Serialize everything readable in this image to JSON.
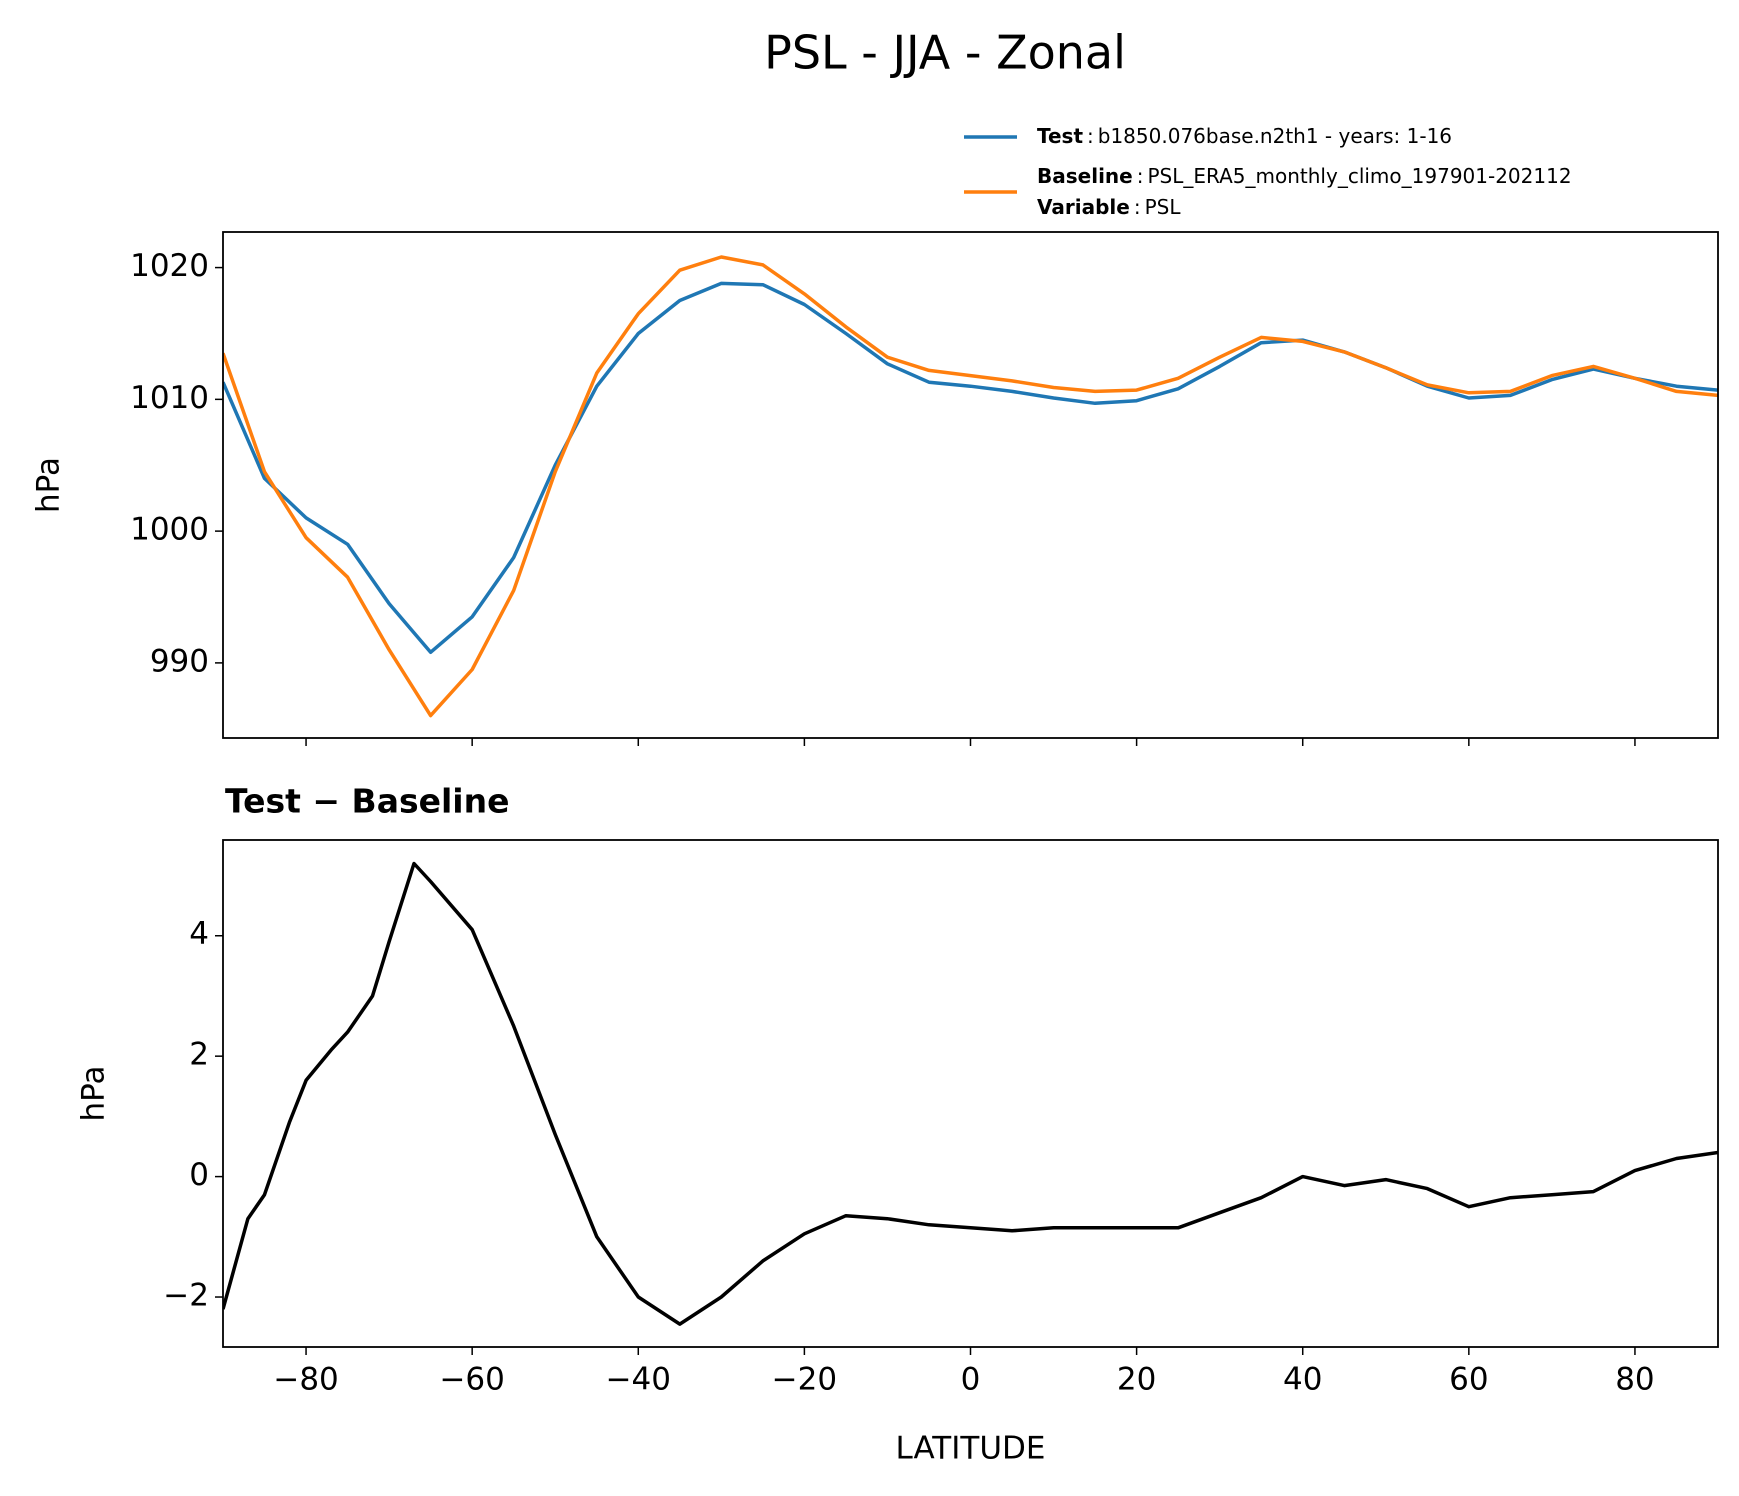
{
  "title": "PSL - JJA - Zonal",
  "legend": {
    "separator": ":",
    "extra": {
      "key": "Variable",
      "text": "PSL"
    }
  },
  "chart_data": [
    {
      "type": "line",
      "ylabel": "hPa",
      "x": [
        -90,
        -85,
        -80,
        -75,
        -70,
        -65,
        -60,
        -55,
        -50,
        -45,
        -40,
        -35,
        -30,
        -25,
        -20,
        -15,
        -10,
        -5,
        0,
        5,
        10,
        15,
        20,
        25,
        30,
        35,
        40,
        45,
        50,
        55,
        60,
        65,
        70,
        75,
        80,
        85,
        90
      ],
      "series": [
        {
          "name": "Test",
          "description": "b1850.076base.n2th1 - years: 1-16",
          "color": "#1f77b4",
          "values": [
            1011.3,
            1004,
            1001,
            999,
            994.5,
            990.8,
            993.5,
            998,
            1005,
            1011,
            1015,
            1017.5,
            1018.8,
            1018.7,
            1017.2,
            1015,
            1012.7,
            1011.3,
            1011,
            1010.6,
            1010.1,
            1009.7,
            1009.9,
            1010.8,
            1012.5,
            1014.3,
            1014.5,
            1013.6,
            1012.4,
            1011,
            1010.1,
            1010.3,
            1011.5,
            1012.3,
            1011.6,
            1011,
            1010.7
          ]
        },
        {
          "name": "Baseline",
          "description": "PSL_ERA5_monthly_climo_197901-202112",
          "color": "#ff7f0e",
          "values": [
            1013.5,
            1004.5,
            999.5,
            996.5,
            991,
            986,
            989.5,
            995.5,
            1004.5,
            1012,
            1016.5,
            1019.8,
            1020.8,
            1020.2,
            1018,
            1015.5,
            1013.2,
            1012.2,
            1011.8,
            1011.4,
            1010.9,
            1010.6,
            1010.7,
            1011.6,
            1013.2,
            1014.7,
            1014.4,
            1013.6,
            1012.4,
            1011.1,
            1010.5,
            1010.6,
            1011.8,
            1012.5,
            1011.6,
            1010.6,
            1010.3
          ]
        }
      ],
      "xlim": [
        -90,
        90
      ],
      "xticks": [
        {
          "value": -80,
          "label": "−80"
        },
        {
          "value": -60,
          "label": "−60"
        },
        {
          "value": -40,
          "label": "−40"
        },
        {
          "value": -20,
          "label": "−20"
        },
        0,
        20,
        40,
        60,
        80
      ],
      "ylim": [
        984.3,
        1022.7
      ],
      "yticks": [
        990,
        1000,
        1010,
        1020
      ]
    },
    {
      "type": "line",
      "title": "Test − Baseline",
      "ylabel": "hPa",
      "xlabel": "LATITUDE",
      "x": [
        -90,
        -87,
        -85,
        -82,
        -80,
        -77,
        -75,
        -72,
        -70,
        -67,
        -65,
        -60,
        -55,
        -50,
        -45,
        -40,
        -35,
        -30,
        -25,
        -20,
        -15,
        -10,
        -5,
        0,
        5,
        10,
        15,
        20,
        25,
        30,
        35,
        40,
        45,
        50,
        55,
        60,
        65,
        70,
        75,
        80,
        85,
        90
      ],
      "series": [
        {
          "color": "#000000",
          "values": [
            -2.2,
            -0.7,
            -0.3,
            0.9,
            1.6,
            2.1,
            2.4,
            3.0,
            3.9,
            5.2,
            4.9,
            4.1,
            2.5,
            0.7,
            -1.0,
            -2.0,
            -2.45,
            -2.0,
            -1.4,
            -0.95,
            -0.65,
            -0.7,
            -0.8,
            -0.85,
            -0.9,
            -0.85,
            -0.85,
            -0.85,
            -0.85,
            -0.6,
            -0.35,
            0.0,
            -0.15,
            -0.05,
            -0.2,
            -0.5,
            -0.35,
            -0.3,
            -0.25,
            0.1,
            0.3,
            0.4
          ]
        }
      ],
      "xlim": [
        -90,
        90
      ],
      "xticks": [
        {
          "value": -80,
          "label": "−80"
        },
        {
          "value": -60,
          "label": "−60"
        },
        {
          "value": -40,
          "label": "−40"
        },
        {
          "value": -20,
          "label": "−20"
        },
        0,
        20,
        40,
        60,
        80
      ],
      "ylim": [
        -2.83,
        5.59
      ],
      "yticks": [
        {
          "value": -2,
          "label": "−2"
        },
        0,
        2,
        4
      ]
    }
  ]
}
